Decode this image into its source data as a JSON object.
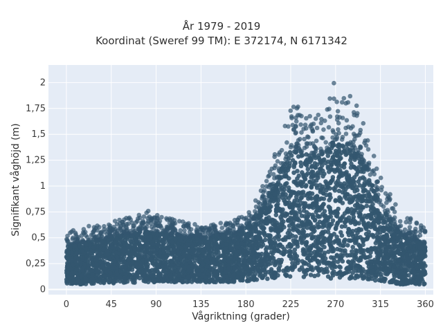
{
  "chart_data": {
    "type": "scatter",
    "title": "År 1979 - 2019",
    "subtitle": "Koordinat (Sweref 99 TM): E 372174, N 6171342",
    "xlabel": "Vågriktning (grader)",
    "ylabel": "Signifikant våghöjd (m)",
    "xlim": [
      -18,
      368
    ],
    "ylim": [
      -0.05,
      2.17
    ],
    "x_ticks": [
      0,
      45,
      90,
      135,
      180,
      225,
      270,
      315,
      360
    ],
    "x_tick_labels": [
      "0",
      "45",
      "90",
      "135",
      "180",
      "225",
      "270",
      "315",
      "360"
    ],
    "y_ticks": [
      0,
      0.25,
      0.5,
      0.75,
      1,
      1.25,
      1.5,
      1.75,
      2
    ],
    "y_tick_labels": [
      "0",
      "0,25",
      "0,5",
      "0,75",
      "1",
      "1,25",
      "1,5",
      "1,75",
      "2"
    ],
    "grid": true,
    "background": "#e5ecf6",
    "marker_color": "#33566f",
    "envelope": {
      "description_points_x": [
        0,
        15,
        45,
        80,
        90,
        135,
        170,
        180,
        200,
        225,
        255,
        270,
        285,
        300,
        315,
        335,
        360
      ],
      "max_y": [
        0.55,
        0.6,
        0.65,
        0.78,
        0.72,
        0.62,
        0.68,
        0.75,
        1.05,
        1.8,
        1.7,
        2.05,
        1.95,
        1.55,
        1.1,
        0.75,
        0.6
      ],
      "dense_y": [
        0.42,
        0.45,
        0.5,
        0.58,
        0.55,
        0.5,
        0.55,
        0.6,
        0.85,
        1.35,
        1.3,
        1.45,
        1.4,
        1.2,
        0.8,
        0.55,
        0.45
      ],
      "min_y": [
        0.05,
        0.05,
        0.06,
        0.07,
        0.07,
        0.07,
        0.07,
        0.08,
        0.1,
        0.12,
        0.12,
        0.1,
        0.1,
        0.1,
        0.08,
        0.05,
        0.05
      ]
    }
  }
}
